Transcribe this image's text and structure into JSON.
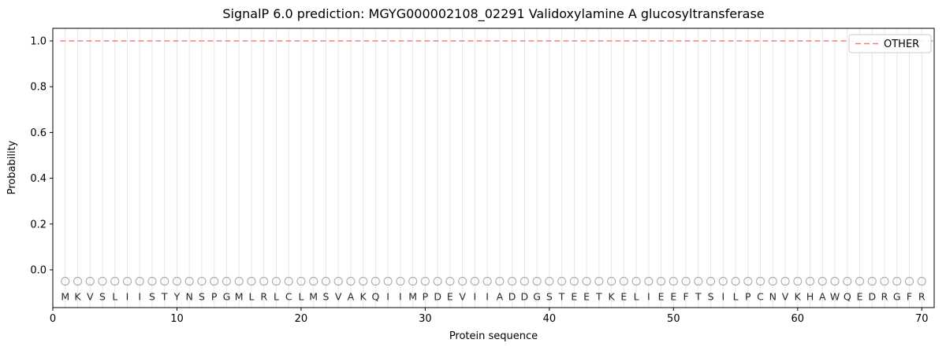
{
  "chart_data": {
    "type": "line",
    "title": "SignalP 6.0 prediction: MGYG000002108_02291 Validoxylamine A glucosyltransferase",
    "xlabel": "Protein sequence",
    "ylabel": "Probability",
    "xlim": [
      0,
      71
    ],
    "ylim": [
      -0.165,
      1.055
    ],
    "x_ticks": [
      0,
      10,
      20,
      30,
      40,
      50,
      60,
      70
    ],
    "x_tick_labels": [
      "0",
      "10",
      "20",
      "30",
      "40",
      "50",
      "60",
      "70"
    ],
    "y_ticks": [
      0.0,
      0.2,
      0.4,
      0.6,
      0.8,
      1.0
    ],
    "y_tick_labels": [
      "0.0",
      "0.2",
      "0.4",
      "0.6",
      "0.8",
      "1.0"
    ],
    "grid": "vertical gridline at every residue position, no horizontal gridlines",
    "legend": {
      "position": "upper right",
      "entries": [
        {
          "label": "OTHER",
          "color": "#f08080",
          "linestyle": "dashed"
        }
      ]
    },
    "series": [
      {
        "name": "OTHER",
        "color": "#f08080",
        "linestyle": "dashed",
        "y_constant": 1.0,
        "x_start": 0.6,
        "x_end": 70.9
      }
    ],
    "sequence": "MKVSLIISTYNSPGMLRLCLMSVAKQIIMPDEVIIADDGSTEETKELIEEFTSILPCNVKHAWQEDRGFR",
    "sequence_length": 70,
    "residue_markers": {
      "shape": "open-circle",
      "marker_y": -0.05,
      "letter_y": -0.133,
      "marker_color": "#b0b0b0",
      "letter_color": "#262626"
    },
    "style": {
      "grid_color": "#e7e7e7",
      "spine_color": "#000000",
      "background": "#ffffff",
      "legend_border": "#cccccc"
    }
  }
}
